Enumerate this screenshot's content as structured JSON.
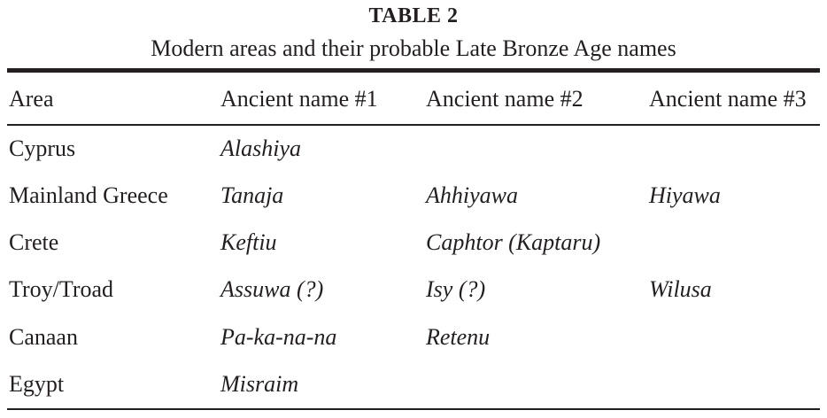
{
  "table": {
    "label": "TABLE 2",
    "caption": "Modern areas and their probable Late Bronze Age names",
    "headers": [
      "Area",
      "Ancient name #1",
      "Ancient name #2",
      "Ancient name #3"
    ],
    "rows": [
      [
        "Cyprus",
        "Alashiya",
        "",
        ""
      ],
      [
        "Mainland Greece",
        "Tanaja",
        "Ahhiyawa",
        "Hiyawa"
      ],
      [
        "Crete",
        "Keftiu",
        "Caphtor (Kaptaru)",
        ""
      ],
      [
        "Troy/Troad",
        "Assuwa (?)",
        "Isy (?)",
        "Wilusa"
      ],
      [
        "Canaan",
        "Pa-ka-na-na",
        "Retenu",
        ""
      ],
      [
        "Egypt",
        "Misraim",
        "",
        ""
      ]
    ]
  }
}
